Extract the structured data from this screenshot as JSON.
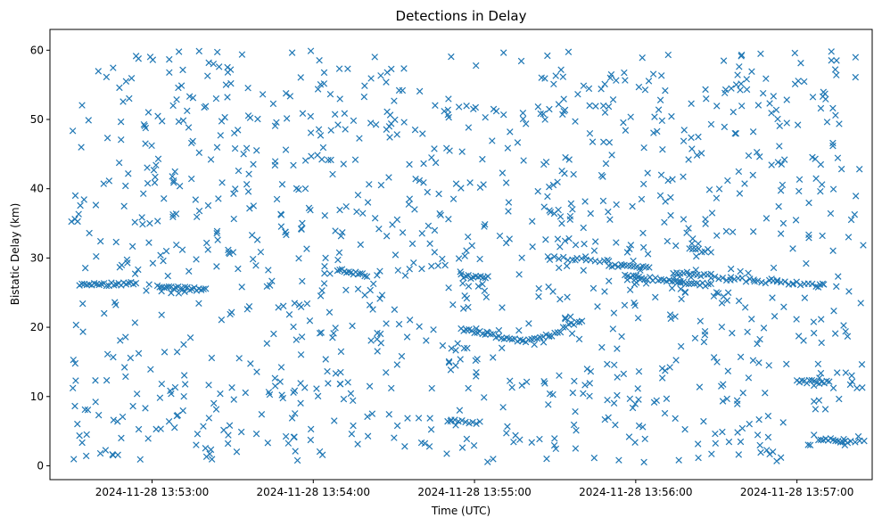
{
  "chart_data": {
    "type": "scatter",
    "title": "Detections in Delay",
    "xlabel": "Time (UTC)",
    "ylabel": "Bistatic Delay (km)",
    "marker": "x",
    "color": "#1f77b4",
    "grid": false,
    "xlim": [
      "2024-11-28 13:52:22",
      "2024-11-28 13:57:28"
    ],
    "ylim": [
      -2,
      63
    ],
    "x_ticks": [
      "2024-11-28 13:53:00",
      "2024-11-28 13:54:00",
      "2024-11-28 13:55:00",
      "2024-11-28 13:56:00",
      "2024-11-28 13:57:00"
    ],
    "y_ticks": [
      0,
      10,
      20,
      30,
      40,
      50,
      60
    ],
    "tracks": [
      {
        "start": "2024-11-28 13:52:33",
        "end": "2024-11-28 13:52:54",
        "y_start": 26.0,
        "y_end": 26.4,
        "points": 24
      },
      {
        "start": "2024-11-28 13:53:02",
        "end": "2024-11-28 13:53:20",
        "y_start": 25.9,
        "y_end": 25.4,
        "points": 22
      },
      {
        "start": "2024-11-28 13:54:09",
        "end": "2024-11-28 13:54:20",
        "y_start": 28.3,
        "y_end": 27.5,
        "points": 14
      },
      {
        "start": "2024-11-28 13:54:55",
        "end": "2024-11-28 13:55:05",
        "y_start": 27.4,
        "y_end": 27.1,
        "points": 12
      },
      {
        "start": "2024-11-28 13:54:50",
        "end": "2024-11-28 13:55:02",
        "y_start": 6.5,
        "y_end": 6.2,
        "points": 10
      },
      {
        "start": "2024-11-28 13:54:55",
        "end": "2024-11-28 13:55:18",
        "y_start": 19.8,
        "y_end": 17.9,
        "points": 24
      },
      {
        "start": "2024-11-28 13:55:18",
        "end": "2024-11-28 13:55:32",
        "y_start": 18.0,
        "y_end": 19.2,
        "points": 14
      },
      {
        "start": "2024-11-28 13:55:33",
        "end": "2024-11-28 13:55:40",
        "y_start": 20.0,
        "y_end": 21.0,
        "points": 8
      },
      {
        "start": "2024-11-28 13:55:28",
        "end": "2024-11-28 13:55:50",
        "y_start": 30.0,
        "y_end": 29.5,
        "points": 14
      },
      {
        "start": "2024-11-28 13:55:50",
        "end": "2024-11-28 13:56:05",
        "y_start": 29.0,
        "y_end": 28.5,
        "points": 14
      },
      {
        "start": "2024-11-28 13:55:56",
        "end": "2024-11-28 13:56:28",
        "y_start": 27.4,
        "y_end": 26.1,
        "points": 32
      },
      {
        "start": "2024-11-28 13:56:14",
        "end": "2024-11-28 13:56:28",
        "y_start": 27.9,
        "y_end": 27.5,
        "points": 12
      },
      {
        "start": "2024-11-28 13:56:20",
        "end": "2024-11-28 13:56:28",
        "y_start": 31.2,
        "y_end": 31.0,
        "points": 8
      },
      {
        "start": "2024-11-28 13:56:28",
        "end": "2024-11-28 13:57:10",
        "y_start": 27.2,
        "y_end": 26.0,
        "points": 30
      },
      {
        "start": "2024-11-28 13:57:00",
        "end": "2024-11-28 13:57:12",
        "y_start": 12.2,
        "y_end": 12.0,
        "points": 14
      },
      {
        "start": "2024-11-28 13:57:08",
        "end": "2024-11-28 13:57:18",
        "y_start": 3.9,
        "y_end": 3.5,
        "points": 12
      },
      {
        "start": "2024-11-28 13:57:20",
        "end": "2024-11-28 13:57:25",
        "y_start": 3.6,
        "y_end": 3.6,
        "points": 4
      }
    ],
    "clutter": {
      "start": "2024-11-28 13:52:30",
      "end": "2024-11-28 13:57:25",
      "y_range": [
        0.5,
        60
      ],
      "points": 1150,
      "distribution": "uniform"
    }
  }
}
